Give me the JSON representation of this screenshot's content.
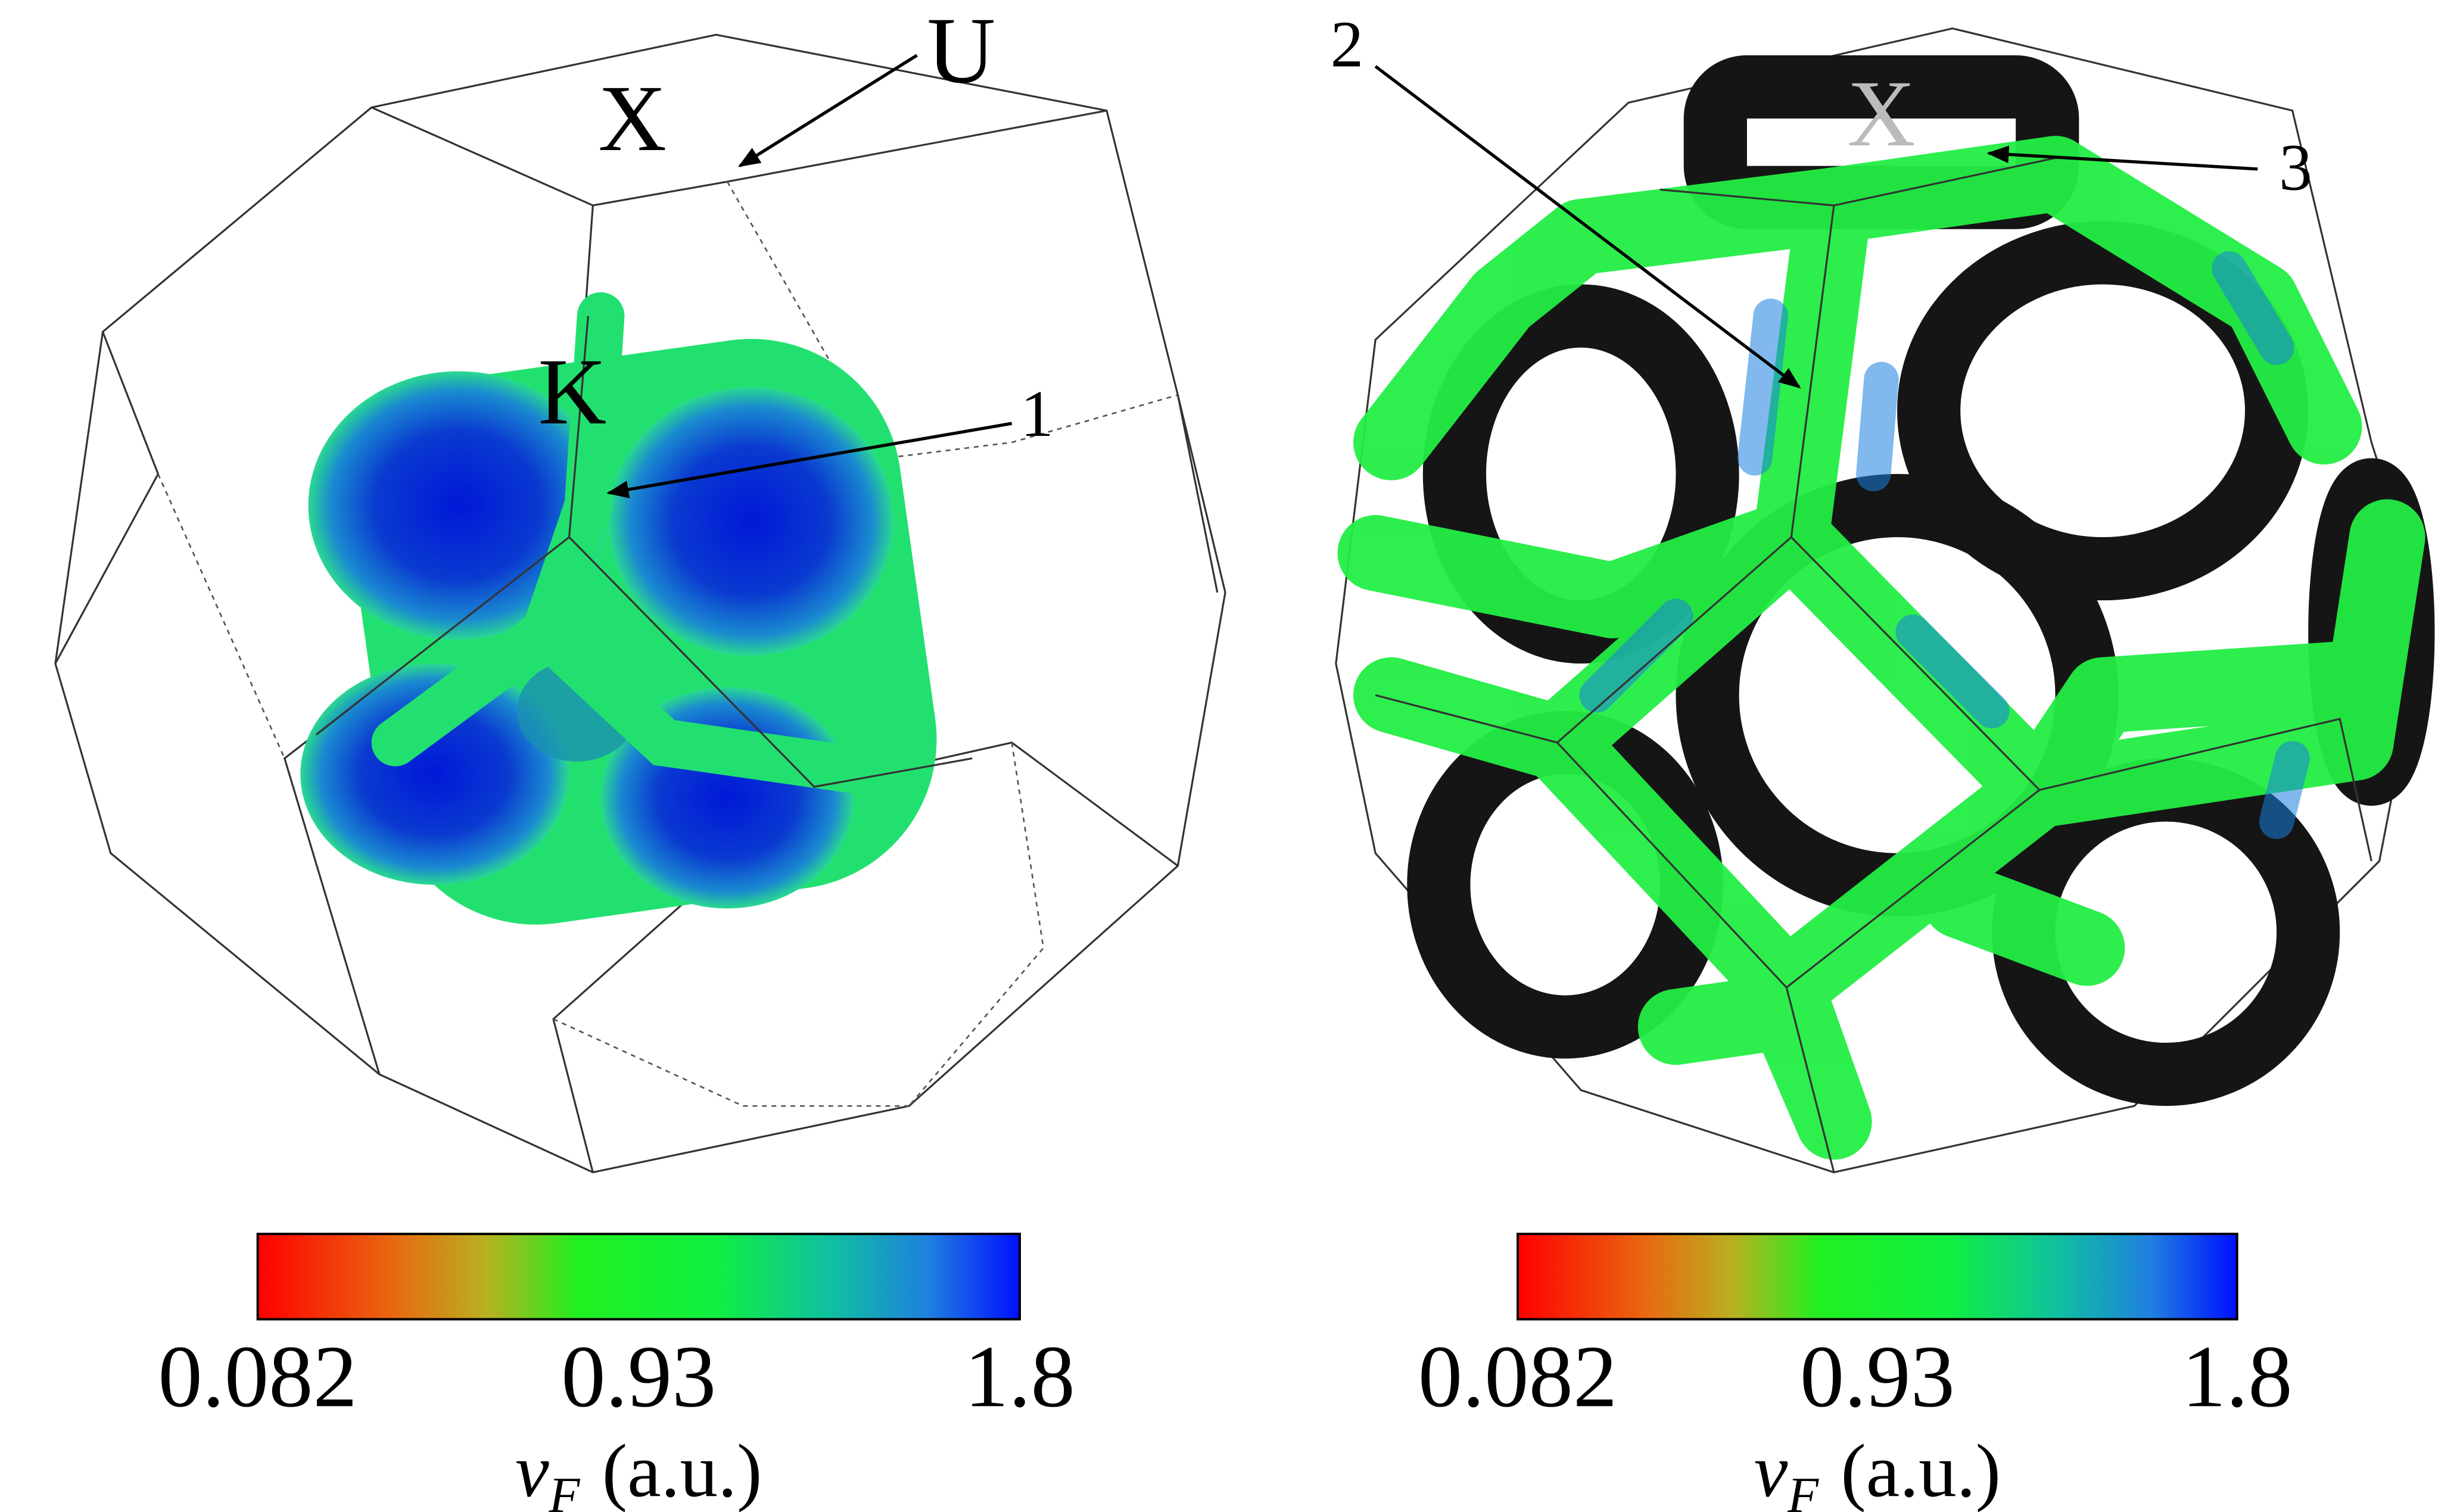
{
  "panels": [
    {
      "labels": [
        "X",
        "U",
        "K",
        "1"
      ],
      "colorbar": {
        "ticks": [
          "0.082",
          "0.93",
          "1.8"
        ],
        "label": {
          "symbol": "v",
          "subscript": "F",
          "unit": "(a.u.)"
        }
      }
    },
    {
      "labels": [
        "2",
        "X",
        "3"
      ],
      "colorbar": {
        "ticks": [
          "0.082",
          "0.93",
          "1.8"
        ],
        "label": {
          "symbol": "v",
          "subscript": "F",
          "unit": "(a.u.)"
        }
      }
    }
  ]
}
